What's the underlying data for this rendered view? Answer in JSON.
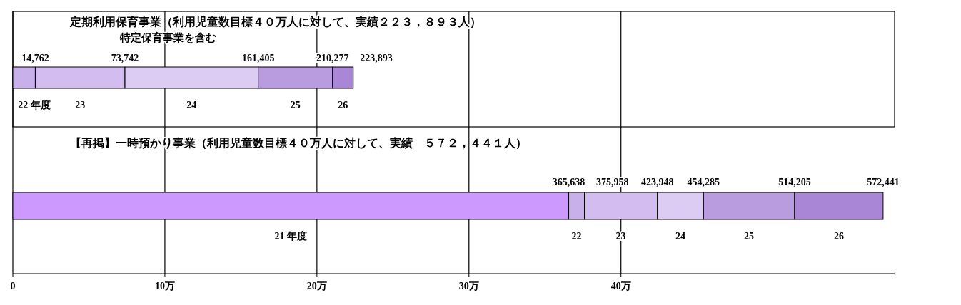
{
  "chart_data": [
    {
      "type": "bar",
      "orientation": "horizontal",
      "stacked": true,
      "title": "定期利用保育事業（利用児童数目標４０万人に対して、実績２２３，８９３人）",
      "subtitle": "特定保育事業を含む",
      "categories": [
        null
      ],
      "xlim": [
        0,
        58
      ],
      "xticks": [
        0,
        10,
        20,
        30,
        40
      ],
      "grid": "x",
      "tick_labels": false,
      "series": [
        {
          "name": "22 年度",
          "color": "#c8b0ea",
          "values": [
            1.4762
          ]
        },
        {
          "name": "23",
          "color": "#d2bcf0",
          "values": [
            5.898
          ]
        },
        {
          "name": "24",
          "color": "#dccbf2",
          "values": [
            8.7663
          ]
        },
        {
          "name": "25",
          "color": "#b99be0",
          "values": [
            4.8872
          ]
        },
        {
          "name": "26",
          "color": "#a987d6",
          "values": [
            1.3616
          ]
        }
      ],
      "annotations": [
        "14,762",
        "73,742",
        "161,405",
        "210,277",
        "223,893"
      ]
    },
    {
      "type": "bar",
      "orientation": "horizontal",
      "stacked": true,
      "title": "【再掲】一時預かり事業（利用児童数目標４０万人に対して、実績　５７２，４４１人）",
      "categories": [
        null
      ],
      "xlim": [
        0,
        58
      ],
      "xticks": [
        0,
        {
          "value": 10,
          "label": "10万"
        },
        {
          "value": 20,
          "label": "20万"
        },
        {
          "value": 30,
          "label": "30万"
        },
        {
          "value": 40,
          "label": "40万"
        }
      ],
      "grid": "x",
      "series": [
        {
          "name": "21 年度",
          "color": "#cc99ff",
          "values": [
            36.5638
          ]
        },
        {
          "name": "22",
          "color": "#c8b0ea",
          "values": [
            1.032
          ]
        },
        {
          "name": "23",
          "color": "#d2bcf0",
          "values": [
            4.799
          ]
        },
        {
          "name": "24",
          "color": "#dccbf2",
          "values": [
            3.0337
          ]
        },
        {
          "name": "25",
          "color": "#b99be0",
          "values": [
            5.992
          ]
        },
        {
          "name": "26",
          "color": "#a987d6",
          "values": [
            5.8236
          ]
        }
      ],
      "annotations": [
        "365,638",
        "375,958",
        "423,948",
        "454,285",
        "514,205",
        "572,441"
      ]
    }
  ]
}
